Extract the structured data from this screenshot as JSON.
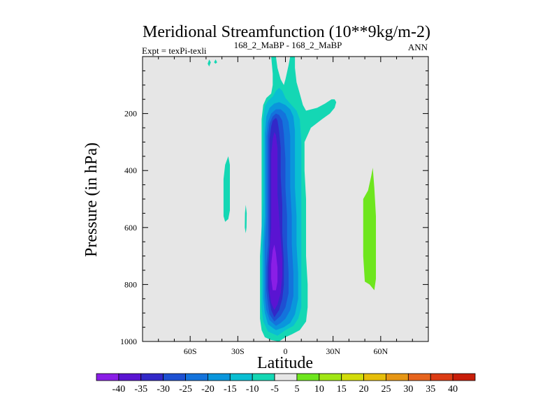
{
  "chart_data": {
    "type": "contour",
    "title": "Meridional Streamfunction (10**9kg/m-2)",
    "subtitle_left": "Expt = texPi-texli",
    "subtitle_center": "168_2_MaBP - 168_2_MaBP",
    "subtitle_right": "ANN",
    "xlabel": "Latitude",
    "ylabel": "Pressure (in hPa)",
    "xlim": [
      -90,
      90
    ],
    "ylim": [
      1000,
      0
    ],
    "x_ticks": [
      {
        "value": -60,
        "label": "60S"
      },
      {
        "value": -30,
        "label": "30S"
      },
      {
        "value": 0,
        "label": "0"
      },
      {
        "value": 30,
        "label": "30N"
      },
      {
        "value": 60,
        "label": "60N"
      }
    ],
    "y_ticks": [
      {
        "value": 200,
        "label": "200"
      },
      {
        "value": 400,
        "label": "400"
      },
      {
        "value": 600,
        "label": "600"
      },
      {
        "value": 800,
        "label": "800"
      },
      {
        "value": 1000,
        "label": "1000"
      }
    ],
    "background_color": "#e6e6e6",
    "colorbar": {
      "labels": [
        "-40",
        "-35",
        "-30",
        "-25",
        "-20",
        "-15",
        "-10",
        "-5",
        "5",
        "10",
        "15",
        "20",
        "25",
        "30",
        "35",
        "40"
      ],
      "colors": [
        "#8a1ee6",
        "#5a14d2",
        "#3228c8",
        "#1e50d2",
        "#1473dc",
        "#0a96dc",
        "#0abed2",
        "#14d7b4",
        "#e6e6e6",
        "#6ee61e",
        "#a0e614",
        "#d2dc0a",
        "#e6be0a",
        "#e69614",
        "#e6641e",
        "#dc3c14",
        "#c81e0a"
      ]
    },
    "filled_regions": [
      {
        "level": -5,
        "color": "#14d7b4",
        "polygon": [
          [
            -4,
            1000
          ],
          [
            -9,
            995
          ],
          [
            -13,
            985
          ],
          [
            -15,
            960
          ],
          [
            -16,
            920
          ],
          [
            -16,
            860
          ],
          [
            -16,
            780
          ],
          [
            -16,
            700
          ],
          [
            -15,
            600
          ],
          [
            -15,
            500
          ],
          [
            -15,
            400
          ],
          [
            -15,
            300
          ],
          [
            -15,
            220
          ],
          [
            -14,
            170
          ],
          [
            -12,
            145
          ],
          [
            -9,
            130
          ],
          [
            -8,
            100
          ],
          [
            -8,
            60
          ],
          [
            -9,
            0
          ],
          [
            -6,
            0
          ],
          [
            -5,
            40
          ],
          [
            -3,
            80
          ],
          [
            -1,
            100
          ],
          [
            0,
            80
          ],
          [
            2,
            30
          ],
          [
            3,
            0
          ],
          [
            6,
            0
          ],
          [
            6,
            40
          ],
          [
            7,
            90
          ],
          [
            9,
            130
          ],
          [
            11,
            170
          ],
          [
            13,
            190
          ],
          [
            20,
            180
          ],
          [
            25,
            165
          ],
          [
            29,
            150
          ],
          [
            31,
            150
          ],
          [
            32,
            160
          ],
          [
            31,
            180
          ],
          [
            28,
            200
          ],
          [
            23,
            220
          ],
          [
            16,
            250
          ],
          [
            12,
            300
          ],
          [
            12,
            400
          ],
          [
            13,
            500
          ],
          [
            13,
            600
          ],
          [
            13,
            700
          ],
          [
            14,
            800
          ],
          [
            14,
            880
          ],
          [
            13,
            930
          ],
          [
            9,
            960
          ],
          [
            4,
            975
          ],
          [
            0,
            985
          ]
        ]
      },
      {
        "level": -10,
        "color": "#0abed2",
        "polygon": [
          [
            -5,
            980
          ],
          [
            -11,
            965
          ],
          [
            -14,
            930
          ],
          [
            -15,
            880
          ],
          [
            -15,
            800
          ],
          [
            -15,
            700
          ],
          [
            -15,
            600
          ],
          [
            -14,
            500
          ],
          [
            -14,
            400
          ],
          [
            -14,
            300
          ],
          [
            -14,
            220
          ],
          [
            -13,
            175
          ],
          [
            -11,
            155
          ],
          [
            -8,
            140
          ],
          [
            -6,
            120
          ],
          [
            -4,
            110
          ],
          [
            -2,
            120
          ],
          [
            0,
            145
          ],
          [
            3,
            165
          ],
          [
            7,
            190
          ],
          [
            9,
            220
          ],
          [
            10,
            300
          ],
          [
            10,
            400
          ],
          [
            10,
            500
          ],
          [
            10,
            600
          ],
          [
            10,
            700
          ],
          [
            10,
            800
          ],
          [
            10,
            880
          ],
          [
            8,
            920
          ],
          [
            5,
            945
          ],
          [
            0,
            960
          ]
        ]
      },
      {
        "level": -15,
        "color": "#0a96dc",
        "polygon": [
          [
            -6,
            960
          ],
          [
            -11,
            940
          ],
          [
            -13,
            900
          ],
          [
            -14,
            850
          ],
          [
            -14,
            760
          ],
          [
            -14,
            660
          ],
          [
            -13,
            560
          ],
          [
            -13,
            460
          ],
          [
            -13,
            360
          ],
          [
            -13,
            270
          ],
          [
            -12,
            210
          ],
          [
            -10,
            180
          ],
          [
            -7,
            165
          ],
          [
            -4,
            160
          ],
          [
            0,
            170
          ],
          [
            3,
            185
          ],
          [
            5,
            210
          ],
          [
            6,
            260
          ],
          [
            6,
            360
          ],
          [
            6,
            460
          ],
          [
            7,
            560
          ],
          [
            7,
            660
          ],
          [
            8,
            760
          ],
          [
            8,
            850
          ],
          [
            6,
            905
          ],
          [
            3,
            935
          ],
          [
            -1,
            950
          ]
        ]
      },
      {
        "level": -20,
        "color": "#1473dc",
        "polygon": [
          [
            -6,
            945
          ],
          [
            -10,
            925
          ],
          [
            -12,
            890
          ],
          [
            -13,
            840
          ],
          [
            -13,
            760
          ],
          [
            -13,
            660
          ],
          [
            -12,
            560
          ],
          [
            -12,
            460
          ],
          [
            -12,
            360
          ],
          [
            -12,
            280
          ],
          [
            -11,
            230
          ],
          [
            -9,
            200
          ],
          [
            -6,
            185
          ],
          [
            -3,
            185
          ],
          [
            0,
            200
          ],
          [
            2,
            230
          ],
          [
            3,
            280
          ],
          [
            3,
            360
          ],
          [
            3,
            460
          ],
          [
            4,
            560
          ],
          [
            4,
            660
          ],
          [
            5,
            760
          ],
          [
            5,
            840
          ],
          [
            3,
            890
          ],
          [
            0,
            920
          ],
          [
            -3,
            935
          ]
        ]
      },
      {
        "level": -25,
        "color": "#1e50d2",
        "polygon": [
          [
            -7,
            930
          ],
          [
            -10,
            905
          ],
          [
            -11,
            870
          ],
          [
            -12,
            820
          ],
          [
            -12,
            740
          ],
          [
            -11,
            660
          ],
          [
            -11,
            560
          ],
          [
            -11,
            460
          ],
          [
            -11,
            360
          ],
          [
            -11,
            280
          ],
          [
            -10,
            235
          ],
          [
            -8,
            210
          ],
          [
            -6,
            200
          ],
          [
            -4,
            205
          ],
          [
            -2,
            225
          ],
          [
            -1,
            270
          ],
          [
            0,
            360
          ],
          [
            0,
            460
          ],
          [
            1,
            560
          ],
          [
            1,
            660
          ],
          [
            2,
            760
          ],
          [
            2,
            830
          ],
          [
            0,
            880
          ],
          [
            -3,
            910
          ]
        ]
      },
      {
        "level": -30,
        "color": "#3228c8",
        "polygon": [
          [
            -7,
            915
          ],
          [
            -9,
            890
          ],
          [
            -10,
            860
          ],
          [
            -11,
            810
          ],
          [
            -11,
            740
          ],
          [
            -10,
            660
          ],
          [
            -10,
            560
          ],
          [
            -10,
            460
          ],
          [
            -10,
            360
          ],
          [
            -10,
            290
          ],
          [
            -9,
            245
          ],
          [
            -8,
            225
          ],
          [
            -6,
            215
          ],
          [
            -5,
            225
          ],
          [
            -4,
            260
          ],
          [
            -3,
            320
          ],
          [
            -3,
            420
          ],
          [
            -2,
            520
          ],
          [
            -2,
            620
          ],
          [
            -1,
            720
          ],
          [
            -1,
            800
          ],
          [
            -2,
            850
          ],
          [
            -4,
            890
          ]
        ]
      },
      {
        "level": -35,
        "color": "#5a14d2",
        "polygon": [
          [
            -7,
            890
          ],
          [
            -9,
            865
          ],
          [
            -10,
            830
          ],
          [
            -10,
            760
          ],
          [
            -10,
            680
          ],
          [
            -9,
            600
          ],
          [
            -9,
            500
          ],
          [
            -9,
            410
          ],
          [
            -9,
            340
          ],
          [
            -8,
            290
          ],
          [
            -7,
            265
          ],
          [
            -6,
            275
          ],
          [
            -5,
            320
          ],
          [
            -5,
            400
          ],
          [
            -5,
            480
          ],
          [
            -4,
            560
          ],
          [
            -3,
            640
          ],
          [
            -2,
            710
          ],
          [
            -2,
            770
          ],
          [
            -3,
            830
          ],
          [
            -5,
            870
          ]
        ]
      },
      {
        "level": -40,
        "color": "#8a1ee6",
        "polygon": [
          [
            -8,
            820
          ],
          [
            -9,
            780
          ],
          [
            -9,
            730
          ],
          [
            -8,
            680
          ],
          [
            -7,
            660
          ],
          [
            -6,
            690
          ],
          [
            -5,
            740
          ],
          [
            -5,
            790
          ],
          [
            -6,
            820
          ]
        ]
      },
      {
        "level": -5,
        "color": "#14d7b4",
        "polygon": [
          [
            -38,
            580
          ],
          [
            -39,
            560
          ],
          [
            -39,
            500
          ],
          [
            -39,
            430
          ],
          [
            -38,
            380
          ],
          [
            -36,
            350
          ],
          [
            -35,
            380
          ],
          [
            -35,
            460
          ],
          [
            -35,
            540
          ],
          [
            -36,
            570
          ]
        ]
      },
      {
        "level": -5,
        "color": "#14d7b4",
        "polygon": [
          [
            -49,
            25
          ],
          [
            -48,
            10
          ],
          [
            -47,
            20
          ],
          [
            -48,
            35
          ]
        ]
      },
      {
        "level": -5,
        "color": "#14d7b4",
        "polygon": [
          [
            -45,
            20
          ],
          [
            -44,
            10
          ],
          [
            -43,
            20
          ],
          [
            -44,
            25
          ]
        ]
      },
      {
        "level": -5,
        "color": "#14d7b4",
        "polygon": [
          [
            -25,
            620
          ],
          [
            -25.6,
            600
          ],
          [
            -25.5,
            550
          ],
          [
            -25,
            520
          ],
          [
            -24.4,
            550
          ],
          [
            -24.5,
            600
          ]
        ]
      },
      {
        "level": 5,
        "color": "#6ee61e",
        "polygon": [
          [
            53,
            800
          ],
          [
            50,
            790
          ],
          [
            49,
            700
          ],
          [
            49,
            600
          ],
          [
            49,
            500
          ],
          [
            52,
            470
          ],
          [
            54,
            420
          ],
          [
            55,
            390
          ],
          [
            56,
            460
          ],
          [
            57,
            560
          ],
          [
            57,
            680
          ],
          [
            57,
            780
          ],
          [
            56,
            820
          ]
        ]
      }
    ]
  }
}
